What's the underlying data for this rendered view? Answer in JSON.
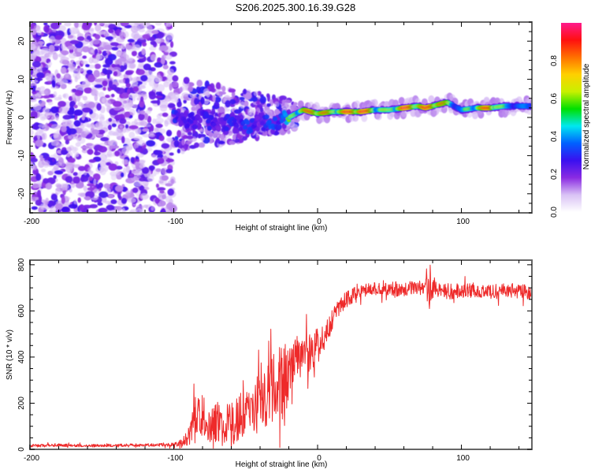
{
  "title": "S206.2025.300.16.39.G28",
  "chart_data": [
    {
      "type": "heatmap",
      "name": "spectrogram",
      "xlabel": "Height of straight line (km)",
      "ylabel": "Frequency (Hz)",
      "xlim": [
        -200,
        149
      ],
      "ylim": [
        -25,
        25
      ],
      "xticks": [
        -200,
        -100,
        0,
        100
      ],
      "xtick_labels": [
        "-200",
        "-100",
        "0",
        "100"
      ],
      "yticks": [
        -20,
        -10,
        0,
        10,
        20
      ],
      "ytick_labels": [
        "-20",
        "-10",
        "0",
        "10",
        "20"
      ],
      "grid": false,
      "colorbar": {
        "label": "Normalized spectral amplitude",
        "range": [
          0.0,
          1.0
        ],
        "ticks": [
          0.0,
          0.2,
          0.4,
          0.6,
          0.8
        ],
        "tick_labels": [
          "0.0",
          "0.2",
          "0.4",
          "0.6",
          "0.8"
        ],
        "colormap": [
          "#ffffff",
          "#d9c2f5",
          "#8a2be2",
          "#3a10f0",
          "#0060ff",
          "#00e8f0",
          "#00e000",
          "#c8f000",
          "#ffd000",
          "#ff7000",
          "#ff1010",
          "#ff1a8c"
        ]
      },
      "description": "Noise speckle (amplitude 0.05-0.3) between -200 and -100 km over all frequencies; scattered structures -100 to -20 km around -5 to 5 Hz; coherent tone from -20 km to 149 km near 1-4 Hz with peak amplitudes ~0.9",
      "tone_track": {
        "x_km": [
          -100,
          -90,
          -80,
          -70,
          -60,
          -50,
          -40,
          -30,
          -20,
          -15,
          -10,
          0,
          10,
          20,
          30,
          40,
          50,
          60,
          70,
          75,
          80,
          85,
          90,
          95,
          100,
          110,
          120,
          130,
          140,
          149
        ],
        "freq_hz": [
          1,
          -1,
          0,
          -2,
          -1,
          -3,
          -1,
          -2,
          0,
          1,
          2,
          1,
          1.5,
          1.5,
          1.5,
          2,
          2,
          2.5,
          3,
          2.5,
          3,
          3.5,
          4,
          3,
          2,
          2.5,
          2.5,
          3,
          3,
          3
        ],
        "amplitude": [
          0.45,
          0.35,
          0.4,
          0.35,
          0.4,
          0.45,
          0.35,
          0.5,
          0.55,
          0.7,
          0.75,
          0.9,
          0.7,
          0.85,
          0.95,
          0.7,
          0.6,
          0.9,
          0.8,
          0.85,
          0.9,
          0.85,
          0.7,
          0.55,
          0.5,
          0.7,
          0.9,
          0.55,
          0.5,
          0.5
        ]
      }
    },
    {
      "type": "line",
      "name": "snr",
      "xlabel": "Height of straight line (km)",
      "ylabel": "SNR (10 * v/v)",
      "xlim": [
        -200,
        149
      ],
      "ylim": [
        0,
        820
      ],
      "xticks": [
        -200,
        -100,
        0,
        100
      ],
      "xtick_labels": [
        "-200",
        "-100",
        "0",
        "100"
      ],
      "yticks": [
        0,
        200,
        400,
        600,
        800
      ],
      "ytick_labels": [
        "0",
        "200",
        "400",
        "600",
        "800"
      ],
      "grid": false,
      "color": "#ee2a2a",
      "series": [
        {
          "name": "SNR",
          "x": [
            -200,
            -180,
            -160,
            -140,
            -120,
            -100,
            -95,
            -90,
            -85,
            -80,
            -75,
            -70,
            -65,
            -60,
            -55,
            -50,
            -45,
            -40,
            -35,
            -30,
            -25,
            -20,
            -15,
            -10,
            -5,
            0,
            5,
            10,
            15,
            20,
            25,
            30,
            40,
            50,
            60,
            70,
            75,
            78,
            80,
            85,
            90,
            100,
            110,
            120,
            130,
            140,
            149
          ],
          "values": [
            15,
            18,
            16,
            17,
            19,
            20,
            30,
            60,
            130,
            140,
            110,
            120,
            110,
            120,
            130,
            150,
            170,
            200,
            230,
            260,
            290,
            340,
            380,
            400,
            420,
            450,
            500,
            560,
            610,
            650,
            670,
            690,
            700,
            700,
            690,
            700,
            700,
            720,
            690,
            700,
            680,
            690,
            690,
            680,
            690,
            685,
            680
          ],
          "noise_amplitude": [
            8,
            8,
            8,
            8,
            8,
            10,
            20,
            60,
            130,
            120,
            100,
            110,
            100,
            110,
            120,
            130,
            140,
            160,
            170,
            200,
            220,
            180,
            150,
            120,
            110,
            100,
            80,
            60,
            50,
            45,
            40,
            40,
            40,
            40,
            40,
            40,
            40,
            150,
            60,
            40,
            40,
            40,
            40,
            40,
            40,
            40,
            40
          ]
        }
      ]
    }
  ]
}
